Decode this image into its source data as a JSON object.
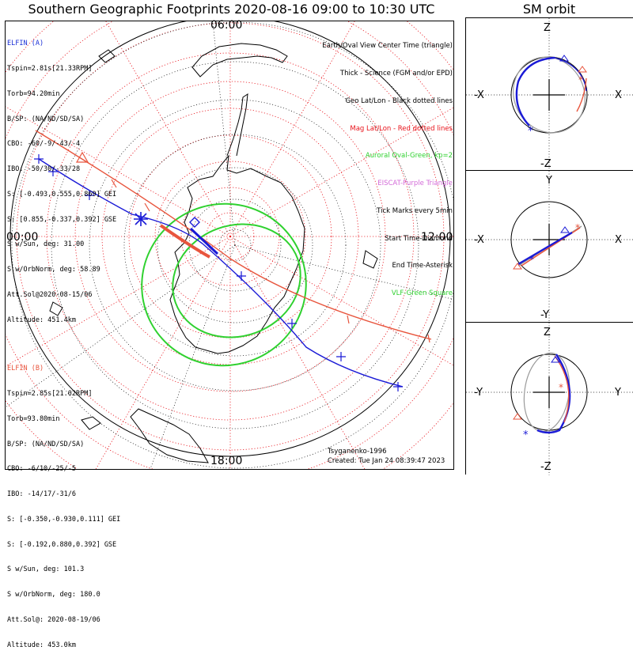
{
  "title": "Southern Geographic Footprints 2020-08-16 09:00 to 10:30 UTC",
  "orbit_title": "SM orbit",
  "time_labels": {
    "top": "06:00",
    "left": "00:00",
    "right": "12:00",
    "bottom": "18:00"
  },
  "elfin_a": {
    "header": "ELFIN (A)",
    "lines": [
      "Tspin=2.81s[21.33RPM]",
      "Torb=94.20min",
      "B/SP: (NA/ND/SD/SA)",
      "CBO: -60/-9/-43/-4",
      "IBO: -50/30/-33/28",
      "S: [-0.493,0.555,0.869] GEI",
      "S: [0.855,-0.337,0.392] GSE",
      "S w/Sun, deg: 31.00",
      "S w/OrbNorm, deg: 58.89",
      "Att.Sol@2020-08-15/06",
      "Altitude: 451.4km"
    ]
  },
  "elfin_b": {
    "header": "ELFIN (B)",
    "lines": [
      "Tspin=2.85s[21.02RPM]",
      "Torb=93.80min",
      "B/SP: (NA/ND/SD/SA)",
      "CBO: -6/10/-25/-5",
      "IBO: -14/17/-31/6",
      "S: [-0.350,-0.930,0.111] GEI",
      "S: [-0.192,0.880,0.392] GSE",
      "S w/Sun, deg: 101.3",
      "S w/OrbNorm, deg: 180.0",
      "Att.Sol@: 2020-08-19/06",
      "Altitude: 453.0km"
    ]
  },
  "legend": [
    {
      "text": "Earth/Oval View Center Time (triangle)",
      "color": "#000000"
    },
    {
      "text": "Thick - Science (FGM and/or EPD)",
      "color": "#000000"
    },
    {
      "text": "Geo Lat/Lon - Black dotted lines",
      "color": "#000000"
    },
    {
      "text": "Mag Lat/Lon - Red dotted lines",
      "color": "#e8121a"
    },
    {
      "text": "Auroral Oval-Green, kp=2",
      "color": "#2fd12f"
    },
    {
      "text": "EISCAT-Purple Triangle",
      "color": "#d36ad8"
    },
    {
      "text": "Tick Marks every 5min",
      "color": "#000000"
    },
    {
      "text": "Start Time-Diamond",
      "color": "#000000"
    },
    {
      "text": "End Time-Asterisk",
      "color": "#000000"
    },
    {
      "text": "VLF-Green Square",
      "color": "#2fd12f"
    }
  ],
  "credit": {
    "model": "Tsyganenko-1996",
    "created": "Created: Tue Jan 24 08:39:47 2023"
  },
  "orbit_panels": [
    {
      "top": "Z",
      "bottom": "-Z",
      "left": "-X",
      "right": "X"
    },
    {
      "top": "Y",
      "bottom": "-Y",
      "left": "-X",
      "right": "X"
    },
    {
      "top": "Z",
      "bottom": "-Z",
      "left": "-Y",
      "right": "Y"
    }
  ],
  "colors": {
    "elfin_a": "#1a1ad6",
    "elfin_b": "#e8553d",
    "mag_grid": "#e8121a",
    "geo_grid": "#000000",
    "auroral_oval": "#2fd12f",
    "eiscat": "#d36ad8"
  }
}
